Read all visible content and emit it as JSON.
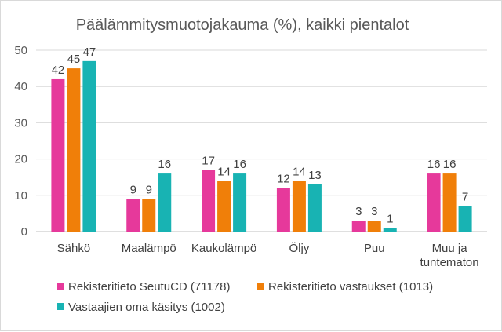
{
  "chart_data": {
    "type": "bar",
    "title": "Päälämmitysmuotojakauma (%), kaikki pientalot",
    "xlabel": "",
    "ylabel": "",
    "ylim": [
      0,
      50
    ],
    "yticks": [
      "0",
      "10",
      "20",
      "30",
      "40",
      "50"
    ],
    "grid": true,
    "legend_position": "bottom",
    "categories": [
      [
        "Sähkö"
      ],
      [
        "Maalämpö"
      ],
      [
        "Kaukolämpö"
      ],
      [
        "Öljy"
      ],
      [
        "Puu"
      ],
      [
        "Muu ja",
        "tuntematon"
      ]
    ],
    "series": [
      {
        "name": "Rekisteritieto SeutuCD (71178)",
        "color": "#e6399b",
        "values": [
          42,
          9,
          17,
          12,
          3,
          16
        ],
        "labels": [
          "42",
          "9",
          "17",
          "12",
          "3",
          "16"
        ]
      },
      {
        "name": "Rekisteritieto vastaukset (1013)",
        "color": "#f07f09",
        "values": [
          45,
          9,
          14,
          14,
          3,
          16
        ],
        "labels": [
          "45",
          "9",
          "14",
          "14",
          "3",
          "16"
        ]
      },
      {
        "name": "Vastaajien oma käsitys (1002)",
        "color": "#18b3b3",
        "values": [
          47,
          16,
          16,
          13,
          1,
          7
        ],
        "labels": [
          "47",
          "16",
          "16",
          "13",
          "1",
          "7"
        ]
      }
    ]
  }
}
